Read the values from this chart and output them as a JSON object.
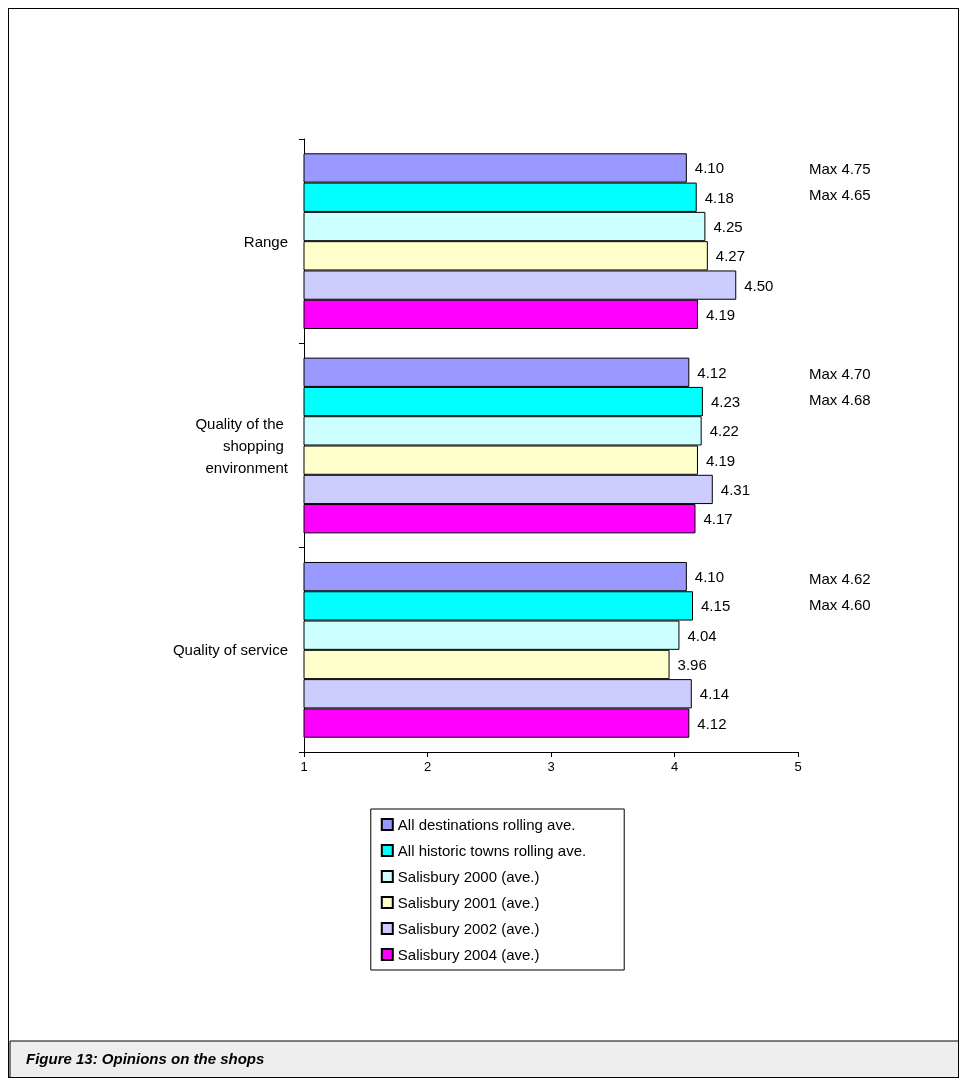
{
  "chart_data": {
    "type": "bar",
    "orientation": "horizontal",
    "title": "Figure 13: Opinions on the shops",
    "categories": [
      "Range",
      "Quality of the shopping environment",
      "Quality of service"
    ],
    "xlim": [
      1,
      5
    ],
    "xticks": [
      1,
      2,
      3,
      4,
      5
    ],
    "grid": false,
    "legend": "bottom",
    "series": [
      {
        "name": "All destinations rolling ave.",
        "color": "#9999ff",
        "values": [
          4.1,
          4.12,
          4.1
        ],
        "value_labels": [
          "4.10",
          "4.12",
          "4.10"
        ]
      },
      {
        "name": "All historic towns rolling ave.",
        "color": "#00ffff",
        "values": [
          4.18,
          4.23,
          4.15
        ],
        "value_labels": [
          "4.18",
          "4.23",
          "4.15"
        ]
      },
      {
        "name": "Salisbury 2000 (ave.)",
        "color": "#ccffff",
        "values": [
          4.25,
          4.22,
          4.04
        ],
        "value_labels": [
          "4.25",
          "4.22",
          "4.04"
        ]
      },
      {
        "name": "Salisbury 2001 (ave.)",
        "color": "#ffffcc",
        "values": [
          4.27,
          4.19,
          3.96
        ],
        "value_labels": [
          "4.27",
          "4.19",
          "3.96"
        ]
      },
      {
        "name": "Salisbury 2002 (ave.)",
        "color": "#ccccff",
        "values": [
          4.5,
          4.31,
          4.14
        ],
        "value_labels": [
          "4.50",
          "4.31",
          "4.14"
        ]
      },
      {
        "name": "Salisbury 2004 (ave.)",
        "color": "#ff00ff",
        "values": [
          4.19,
          4.17,
          4.12
        ],
        "value_labels": [
          "4.19",
          "4.17",
          "4.12"
        ]
      }
    ],
    "annotations": [
      "Max 4.75",
      "Max 4.65",
      "Max 4.70",
      "Max 4.68",
      "Max 4.62",
      "Max 4.60"
    ]
  }
}
